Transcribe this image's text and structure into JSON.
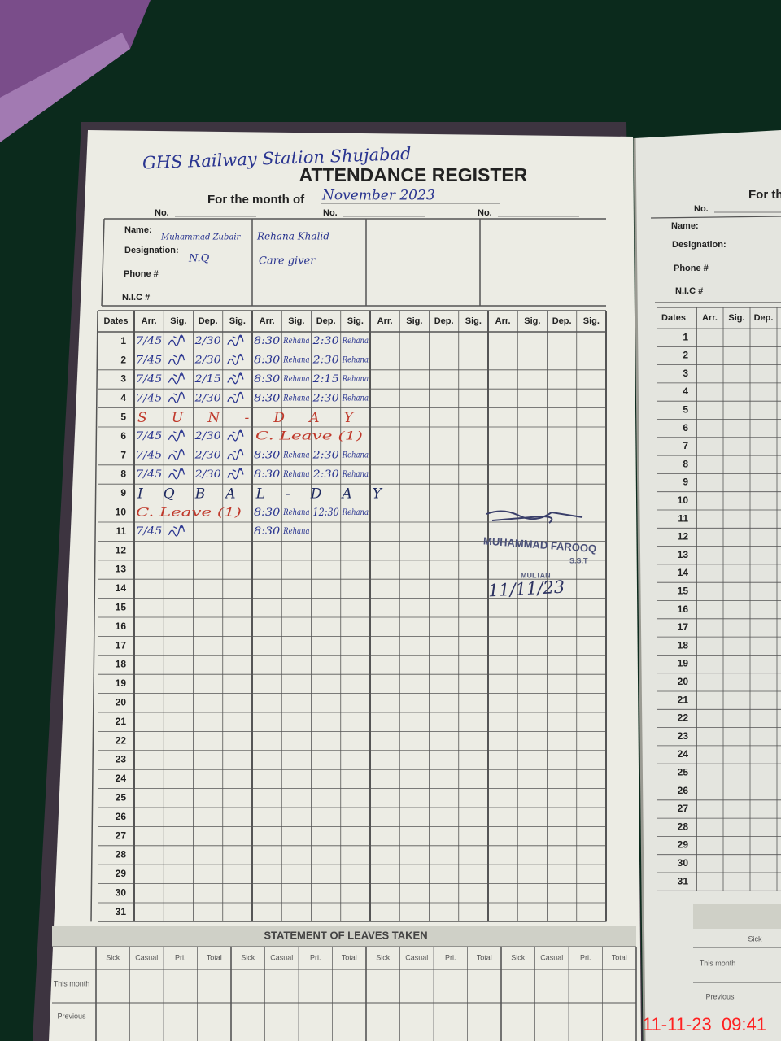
{
  "header": {
    "school": "GHS Railway Station Shujabad",
    "title": "ATTENDANCE REGISTER",
    "month_label": "For the month of",
    "month": "November 2023"
  },
  "labels": {
    "no": "No.",
    "name": "Name:",
    "designation": "Designation:",
    "phone": "Phone #",
    "nic": "N.I.C #"
  },
  "employees": [
    {
      "name": "Muhammad Zubair",
      "designation": "N.Q"
    },
    {
      "name": "Rehana Khalid",
      "designation": "Care giver"
    }
  ],
  "table": {
    "columns": [
      "Dates",
      "Arr.",
      "Sig.",
      "Dep.",
      "Sig.",
      "Arr.",
      "Sig.",
      "Dep.",
      "Sig.",
      "Arr.",
      "Sig.",
      "Dep.",
      "Sig.",
      "Arr.",
      "Sig.",
      "Dep.",
      "Sig."
    ],
    "dates": [
      1,
      2,
      3,
      4,
      5,
      6,
      7,
      8,
      9,
      10,
      11,
      12,
      13,
      14,
      15,
      16,
      17,
      18,
      19,
      20,
      21,
      22,
      23,
      24,
      25,
      26,
      27,
      28,
      29,
      30,
      31
    ],
    "entries": [
      {
        "a1": "7/45",
        "d1": "2/30",
        "a2": "8:30",
        "s2": "Rehana",
        "d2": "2:30",
        "s3": "Rehana"
      },
      {
        "a1": "7/45",
        "d1": "2/30",
        "a2": "8:30",
        "s2": "Rehana",
        "d2": "2:30",
        "s3": "Rehana"
      },
      {
        "a1": "7/45",
        "d1": "2/15",
        "a2": "8:30",
        "s2": "Rehana",
        "d2": "2:15",
        "s3": "Rehana"
      },
      {
        "a1": "7/45",
        "d1": "2/30",
        "a2": "8:30",
        "s2": "Rehana",
        "d2": "2:30",
        "s3": "Rehana"
      },
      {
        "note": "S U N - D A Y"
      },
      {
        "a1": "7/45",
        "d1": "2/30",
        "leave2": "C. Leave (1)"
      },
      {
        "a1": "7/45",
        "d1": "2/30",
        "a2": "8:30",
        "s2": "Rehana",
        "d2": "2:30",
        "s3": "Rehana"
      },
      {
        "a1": "7/45",
        "d1": "2/30",
        "a2": "8:30",
        "s2": "Rehana",
        "d2": "2:30",
        "s3": "Rehana"
      },
      {
        "note": "I Q B A L - D A Y"
      },
      {
        "leave1": "C. Leave (1)",
        "a2": "8:30",
        "s2": "Rehana",
        "d2": "12:30",
        "s3": "Rehana"
      },
      {
        "a1": "7/45",
        "a2": "8:30",
        "s2": "Rehana"
      }
    ]
  },
  "stamp": {
    "name": "MUHAMMAD FAROOQ",
    "post": "S.S.T",
    "place": "MULTAN",
    "date": "11/11/23"
  },
  "leaves": {
    "title": "STATEMENT OF LEAVES TAKEN",
    "columns": [
      "Sick",
      "Casual",
      "Pri.",
      "Total",
      "Sick",
      "Casual",
      "Pri.",
      "Total",
      "Sick",
      "Casual",
      "Pri.",
      "Total",
      "Sick",
      "Casual",
      "Pri.",
      "Total"
    ],
    "rows": [
      "This month",
      "Previous"
    ]
  },
  "right_page": {
    "month_label": "For th",
    "no": "No.",
    "name": "Name:",
    "designation": "Designation:",
    "phone": "Phone #",
    "nic": "N.I.C #",
    "columns": [
      "Dates",
      "Arr.",
      "Sig.",
      "Dep."
    ],
    "leave_column": "Sick",
    "rows": [
      "This month",
      "Previous"
    ]
  },
  "timestamp": "11-11-23  09:41"
}
